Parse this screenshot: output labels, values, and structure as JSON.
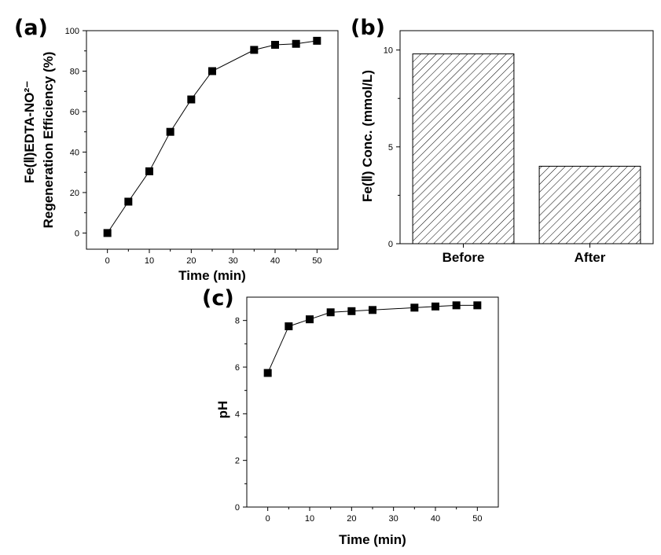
{
  "chart_data": [
    {
      "panel": "(a)",
      "type": "line",
      "ylabel_line1": "Fe(Ⅱ)EDTA-NO²⁻",
      "ylabel_line2": "Regeneration Efficiency (%)",
      "xlabel": "Time (min)",
      "xlim": [
        -5,
        55
      ],
      "ylim": [
        -8,
        100
      ],
      "xticks": [
        0,
        10,
        20,
        30,
        40,
        50
      ],
      "yticks": [
        0,
        20,
        40,
        60,
        80,
        100
      ],
      "x": [
        0,
        5,
        10,
        15,
        20,
        25,
        35,
        40,
        45,
        50
      ],
      "y": [
        0,
        15.5,
        30.5,
        50,
        66,
        80,
        90.5,
        93,
        93.5,
        95
      ]
    },
    {
      "panel": "(b)",
      "type": "bar",
      "ylabel": "Fe(Ⅱ) Conc. (mmol/L)",
      "categories": [
        "Before",
        "After"
      ],
      "values": [
        9.8,
        4.0
      ],
      "ylim": [
        0,
        11
      ],
      "yticks": [
        0,
        5,
        10
      ]
    },
    {
      "panel": "(c)",
      "type": "line",
      "ylabel": "pH",
      "xlabel": "Time (min)",
      "xlim": [
        -5,
        55
      ],
      "ylim": [
        0,
        9
      ],
      "xticks": [
        0,
        10,
        20,
        30,
        40,
        50
      ],
      "yticks": [
        0,
        2,
        4,
        6,
        8
      ],
      "x": [
        0,
        5,
        10,
        15,
        20,
        25,
        35,
        40,
        45,
        50
      ],
      "y": [
        5.75,
        7.75,
        8.05,
        8.35,
        8.4,
        8.45,
        8.55,
        8.6,
        8.65,
        8.65
      ]
    }
  ]
}
